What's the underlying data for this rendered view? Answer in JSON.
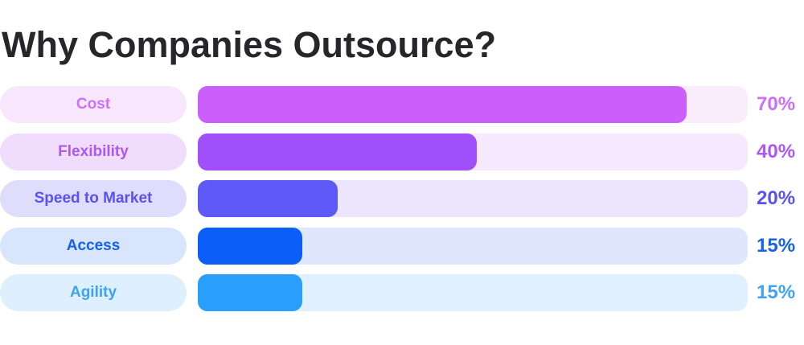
{
  "chart_data": {
    "type": "bar",
    "orientation": "horizontal",
    "title": "Why Companies Outsource?",
    "categories": [
      "Cost",
      "Flexibility",
      "Speed to Market",
      "Access",
      "Agility"
    ],
    "values": [
      70,
      40,
      20,
      15,
      15
    ],
    "value_labels": [
      "70%",
      "40%",
      "20%",
      "15%",
      "15%"
    ],
    "xlim": [
      0,
      100
    ],
    "grid": false,
    "colors": {
      "bars": [
        "#cc5ffc",
        "#a04ffb",
        "#5d59f7",
        "#0b5ef8",
        "#299ffc"
      ],
      "labels": [
        "#cc70fa",
        "#ab58f5",
        "#5a52ef",
        "#1662e8",
        "#3fa2f3"
      ],
      "pills": [
        "#f8e6fd",
        "#f0dcfc",
        "#e0dcfb",
        "#d9e4fd",
        "#def0fd"
      ],
      "tracks": [
        "#faebfd",
        "#f7e9fd",
        "#ebe6fd",
        "#dee7fd",
        "#e1f0fe"
      ]
    }
  }
}
